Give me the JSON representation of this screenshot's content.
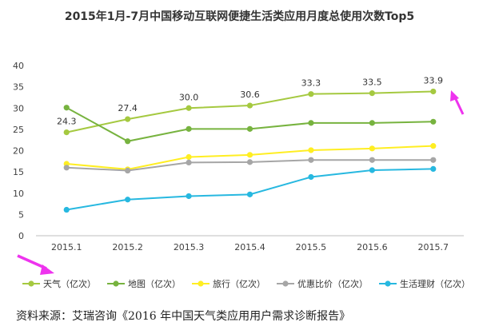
{
  "chart_data": {
    "type": "line",
    "title": "2015年1月-7月中国移动互联网便捷生活类应用月度总使用次数Top5",
    "categories": [
      "2015.1",
      "2015.2",
      "2015.3",
      "2015.4",
      "2015.5",
      "2015.6",
      "2015.7"
    ],
    "ylim": [
      0,
      40
    ],
    "yticks": [
      0,
      5,
      10,
      15,
      20,
      25,
      30,
      35,
      40
    ],
    "grid": false,
    "legend_position": "bottom",
    "series": [
      {
        "name": "天气（亿次）",
        "color": "#a5c940",
        "values": [
          24.3,
          27.4,
          30.0,
          30.6,
          33.3,
          33.5,
          33.9
        ],
        "data_labels": [
          "24.3",
          "27.4",
          "30.0",
          "30.6",
          "33.3",
          "33.5",
          "33.9"
        ]
      },
      {
        "name": "地图（亿次）",
        "color": "#77b33f",
        "values": [
          30.1,
          22.2,
          25.1,
          25.1,
          26.5,
          26.5,
          26.8
        ]
      },
      {
        "name": "旅行（亿次）",
        "color": "#ffee22",
        "values": [
          16.9,
          15.6,
          18.5,
          19.0,
          20.1,
          20.5,
          21.1
        ]
      },
      {
        "name": "优惠比价（亿次）",
        "color": "#a6a6a6",
        "values": [
          16.0,
          15.3,
          17.2,
          17.3,
          17.8,
          17.8,
          17.8
        ]
      },
      {
        "name": "生活理财（亿次）",
        "color": "#27b8e0",
        "values": [
          6.1,
          8.5,
          9.3,
          9.7,
          13.8,
          15.4,
          15.7
        ]
      }
    ]
  },
  "source": "资料来源：艾瑞咨询《2016 年中国天气类应用用户需求诊断报告》",
  "annotation_color": "#ee33ee"
}
